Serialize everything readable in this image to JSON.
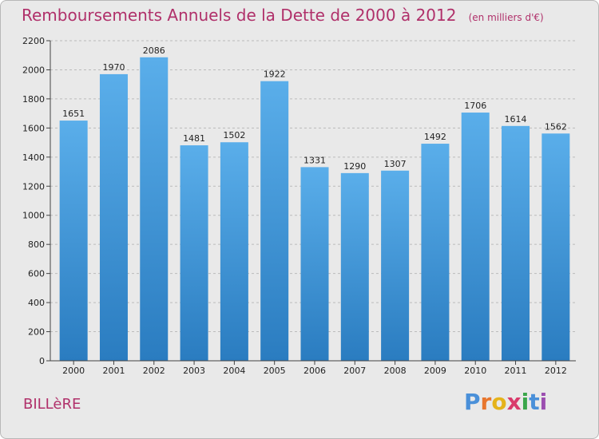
{
  "header": {
    "title": "Remboursements Annuels de la Dette de 2000 à 2012",
    "subtitle": "(en milliers d'€)"
  },
  "footer": {
    "commune": "BILLèRE",
    "logo_letters": [
      "P",
      "r",
      "o",
      "x",
      "i",
      "t",
      "i"
    ],
    "logo_colors": [
      "#4a90d9",
      "#e8762d",
      "#e5b31b",
      "#d93a6b",
      "#3aa64a",
      "#4a90d9",
      "#9b4fb0"
    ]
  },
  "chart_data": {
    "type": "bar",
    "categories": [
      "2000",
      "2001",
      "2002",
      "2003",
      "2004",
      "2005",
      "2006",
      "2007",
      "2008",
      "2009",
      "2010",
      "2011",
      "2012"
    ],
    "values": [
      1651,
      1970,
      2086,
      1481,
      1502,
      1922,
      1331,
      1290,
      1307,
      1492,
      1706,
      1614,
      1562
    ],
    "ylim": [
      0,
      2200
    ],
    "yticks": [
      0,
      200,
      400,
      600,
      800,
      1000,
      1200,
      1400,
      1600,
      1800,
      2000,
      2200
    ],
    "grid": true,
    "bar_color_top": "#5aaeea",
    "bar_color_bottom": "#2a7cc0",
    "grid_color": "#bbbbbb"
  }
}
